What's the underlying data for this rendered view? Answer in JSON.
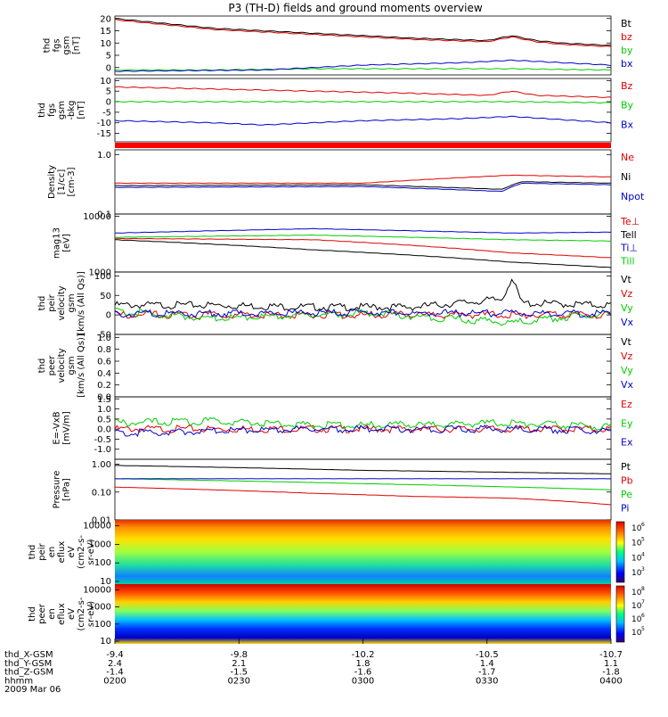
{
  "title": "P3 (TH-D) fields and ground moments overview",
  "colors": {
    "black": "#000000",
    "red": "#e00000",
    "green": "#00cc00",
    "blue": "#0000cc"
  },
  "chart_data": [
    {
      "type": "line",
      "ylabel": [
        "thd",
        "fgs",
        "gsm",
        "[nT]"
      ],
      "ylim": [
        -3,
        21
      ],
      "yticks": [
        "20",
        "15",
        "10",
        "5",
        "0"
      ],
      "ytick_values": [
        20,
        15,
        10,
        5,
        0
      ],
      "series": [
        {
          "name": "Bt",
          "color": "#000000",
          "x": [
            0,
            0.2,
            0.4,
            0.6,
            0.75,
            0.8,
            0.85,
            0.9,
            1
          ],
          "values": [
            20,
            16,
            14,
            12,
            11,
            13,
            11,
            10,
            9
          ]
        },
        {
          "name": "bz",
          "color": "#e00000",
          "x": [
            0,
            0.2,
            0.4,
            0.6,
            0.75,
            0.8,
            0.85,
            0.9,
            1
          ],
          "values": [
            19.5,
            15.5,
            13.5,
            11.5,
            10.5,
            12.5,
            10.5,
            9.5,
            8.5
          ]
        },
        {
          "name": "by",
          "color": "#00cc00",
          "x": [
            0,
            0.2,
            0.4,
            0.6,
            0.8,
            1
          ],
          "values": [
            -1,
            -1,
            -0.5,
            -0.5,
            -0.5,
            -1
          ]
        },
        {
          "name": "bx",
          "color": "#0000cc",
          "x": [
            0,
            0.3,
            0.5,
            0.7,
            0.8,
            1
          ],
          "values": [
            -1.5,
            -1,
            1,
            2,
            3,
            1
          ]
        }
      ]
    },
    {
      "type": "line",
      "ylabel": [
        "thd",
        "fgs",
        "gsm",
        "-bkg",
        "[nT]"
      ],
      "ylim": [
        -19,
        11
      ],
      "yticks": [
        "10",
        "5",
        "0",
        "-5",
        "-10",
        "-15"
      ],
      "ytick_values": [
        10,
        5,
        0,
        -5,
        -10,
        -15
      ],
      "series": [
        {
          "name": "Bz",
          "color": "#e00000",
          "x": [
            0,
            0.2,
            0.4,
            0.6,
            0.75,
            0.8,
            0.85,
            1
          ],
          "values": [
            7,
            6,
            5,
            4,
            3,
            5,
            3,
            2
          ]
        },
        {
          "name": "By",
          "color": "#00cc00",
          "x": [
            0,
            0.5,
            0.8,
            1
          ],
          "values": [
            0,
            0,
            0,
            -0.5
          ]
        },
        {
          "name": "Bx",
          "color": "#0000cc",
          "x": [
            0,
            0.2,
            0.3,
            0.5,
            0.7,
            0.8,
            1
          ],
          "values": [
            -9,
            -10,
            -11,
            -9,
            -8,
            -7,
            -10
          ]
        }
      ]
    },
    {
      "type": "line",
      "ylabel": [
        "Density",
        "[1/cc]",
        "[cm-3]"
      ],
      "ylim": [
        0.1,
        1.2
      ],
      "yscale": "log",
      "yticks": [
        "1.0",
        "0.1"
      ],
      "ytick_values": [
        1.0,
        0.1
      ],
      "series": [
        {
          "name": "Ne",
          "color": "#e00000",
          "x": [
            0,
            0.5,
            0.8,
            1
          ],
          "values": [
            0.33,
            0.33,
            0.45,
            0.42
          ]
        },
        {
          "name": "Ni",
          "color": "#000000",
          "x": [
            0,
            0.5,
            0.78,
            0.82,
            1
          ],
          "values": [
            0.3,
            0.31,
            0.26,
            0.35,
            0.33
          ]
        },
        {
          "name": "Npot",
          "color": "#0000cc",
          "x": [
            0,
            0.5,
            0.78,
            0.82,
            1
          ],
          "values": [
            0.28,
            0.29,
            0.24,
            0.33,
            0.31
          ]
        }
      ]
    },
    {
      "type": "line",
      "ylabel": [
        "mag13",
        "[eV]"
      ],
      "ylim": [
        1000,
        11000
      ],
      "yscale": "log",
      "yticks": [
        "10000",
        "1000"
      ],
      "ytick_values": [
        10000,
        1000
      ],
      "series": [
        {
          "name": "Te⊥",
          "color": "#e00000",
          "x": [
            0,
            0.4,
            0.6,
            0.8,
            1
          ],
          "values": [
            4000,
            3800,
            3000,
            2200,
            1800
          ]
        },
        {
          "name": "Tell",
          "color": "#000000",
          "x": [
            0,
            0.4,
            0.6,
            0.8,
            1
          ],
          "values": [
            3800,
            2500,
            2000,
            1500,
            1200
          ]
        },
        {
          "name": "Ti⊥",
          "color": "#0000cc",
          "x": [
            0,
            0.4,
            0.6,
            0.8,
            1
          ],
          "values": [
            5000,
            6000,
            5500,
            5000,
            5200
          ]
        },
        {
          "name": "Till",
          "color": "#00cc00",
          "x": [
            0,
            0.4,
            0.6,
            0.8,
            1
          ],
          "values": [
            4200,
            4600,
            4200,
            3800,
            3600
          ]
        }
      ]
    },
    {
      "type": "line",
      "ylabel": [
        "thd",
        "peir",
        "velocity",
        "gsm",
        "[km/s (All Qs)]"
      ],
      "ylim": [
        -50,
        110
      ],
      "yticks": [
        "100",
        "50",
        "0",
        "-50"
      ],
      "ytick_values": [
        100,
        50,
        0,
        -50
      ],
      "series": [
        {
          "name": "Vt",
          "color": "#000000",
          "x": [
            0,
            0.2,
            0.4,
            0.6,
            0.78,
            0.8,
            0.82,
            1
          ],
          "values": [
            25,
            25,
            20,
            20,
            40,
            95,
            30,
            25
          ]
        },
        {
          "name": "Vz",
          "color": "#e00000",
          "x": [
            0,
            0.5,
            1
          ],
          "values": [
            0,
            0,
            0
          ]
        },
        {
          "name": "Vy",
          "color": "#00cc00",
          "x": [
            0,
            0.2,
            0.5,
            0.8,
            1
          ],
          "values": [
            10,
            -10,
            5,
            -20,
            5
          ]
        },
        {
          "name": "Vx",
          "color": "#0000cc",
          "x": [
            0,
            0.5,
            1
          ],
          "values": [
            3,
            5,
            3
          ]
        }
      ]
    },
    {
      "type": "line",
      "ylabel": [
        "thd",
        "peer",
        "velocity",
        "gsm",
        "[km/s (All Qs)]"
      ],
      "ylim": [
        0,
        1.05
      ],
      "yticks": [
        "1.0",
        "0.8",
        "0.6",
        "0.4",
        "0.2",
        "0.0"
      ],
      "ytick_values": [
        1.0,
        0.8,
        0.6,
        0.4,
        0.2,
        0.0
      ],
      "series": [
        {
          "name": "Vt",
          "color": "#000000",
          "x": [],
          "values": []
        },
        {
          "name": "Vz",
          "color": "#e00000",
          "x": [],
          "values": []
        },
        {
          "name": "Vy",
          "color": "#00cc00",
          "x": [],
          "values": []
        },
        {
          "name": "Vx",
          "color": "#0000cc",
          "x": [],
          "values": []
        }
      ]
    },
    {
      "type": "line",
      "ylabel": [
        "E=-VxB",
        "[mV/m]"
      ],
      "ylim": [
        -1.5,
        1.6
      ],
      "yticks": [
        "1.5",
        "1.0",
        "0.5",
        "0.0",
        "-0.5",
        "-1.0"
      ],
      "ytick_values": [
        1.5,
        1.0,
        0.5,
        0.0,
        -0.5,
        -1.0
      ],
      "series": [
        {
          "name": "Ez",
          "color": "#e00000",
          "x": [
            0,
            0.5,
            1
          ],
          "values": [
            0,
            0,
            0
          ]
        },
        {
          "name": "Ey",
          "color": "#00cc00",
          "x": [
            0,
            0.2,
            0.4,
            0.6,
            0.8,
            1
          ],
          "values": [
            0.3,
            0.4,
            0.2,
            0.2,
            0.3,
            0.1
          ]
        },
        {
          "name": "Ex",
          "color": "#0000cc",
          "x": [
            0,
            0.2,
            0.4,
            0.6,
            0.8,
            1
          ],
          "values": [
            -0.2,
            -0.1,
            0,
            0,
            0,
            -0.1
          ]
        }
      ]
    },
    {
      "type": "line",
      "ylabel": [
        "Pressure",
        "[nPa]"
      ],
      "ylim": [
        0.01,
        1.5
      ],
      "yscale": "log",
      "yticks": [
        "1.00",
        "0.10",
        "0.01"
      ],
      "ytick_values": [
        1.0,
        0.1,
        0.01
      ],
      "series": [
        {
          "name": "Pt",
          "color": "#000000",
          "x": [
            0,
            0.5,
            1
          ],
          "values": [
            0.9,
            0.6,
            0.45
          ]
        },
        {
          "name": "Pb",
          "color": "#e00000",
          "x": [
            0,
            0.2,
            0.4,
            0.6,
            0.8,
            1
          ],
          "values": [
            0.15,
            0.12,
            0.09,
            0.07,
            0.06,
            0.035
          ]
        },
        {
          "name": "Pe",
          "color": "#00cc00",
          "x": [
            0,
            0.5,
            1
          ],
          "values": [
            0.3,
            0.2,
            0.12
          ]
        },
        {
          "name": "Pi",
          "color": "#0000cc",
          "x": [
            0,
            0.5,
            1
          ],
          "values": [
            0.3,
            0.3,
            0.3
          ]
        }
      ]
    },
    {
      "type": "heatmap",
      "ylabel": [
        "thd",
        "peir",
        "en",
        "eflux",
        "eV",
        "(cm2-s-",
        "sr-eV)"
      ],
      "yscale": "log",
      "yticks": [
        "10000",
        "1000",
        "100",
        "10"
      ],
      "ytick_values": [
        10000,
        1000,
        100,
        10
      ],
      "colorbar_ticks": [
        "10",
        "10",
        "10",
        "10"
      ],
      "colorbar_exponents": [
        "6",
        "5",
        "4",
        "3"
      ]
    },
    {
      "type": "heatmap",
      "ylabel": [
        "thd",
        "peer",
        "en",
        "eflux",
        "eV",
        "(cm2-s-",
        "sr-eV)"
      ],
      "yscale": "log",
      "yticks": [
        "10000",
        "1000",
        "100",
        "10"
      ],
      "ytick_values": [
        10000,
        1000,
        100,
        10
      ],
      "colorbar_ticks": [
        "10",
        "10",
        "10",
        "10"
      ],
      "colorbar_exponents": [
        "8",
        "7",
        "6",
        "5"
      ]
    }
  ],
  "xaxis": {
    "rows": [
      {
        "label": "thd_X-GSM",
        "values": [
          "-9.4",
          "-9.8",
          "-10.2",
          "-10.5",
          "-10.7"
        ]
      },
      {
        "label": "thd_Y-GSM",
        "values": [
          "2.4",
          "2.1",
          "1.8",
          "1.4",
          "1.1"
        ]
      },
      {
        "label": "thd_Z-GSM",
        "values": [
          "-1.4",
          "-1.5",
          "-1.6",
          "-1.7",
          "-1.8"
        ]
      },
      {
        "label": "hhmm",
        "values": [
          "0200",
          "0230",
          "0300",
          "0330",
          "0400"
        ]
      }
    ],
    "date": "2009 Mar 06"
  }
}
